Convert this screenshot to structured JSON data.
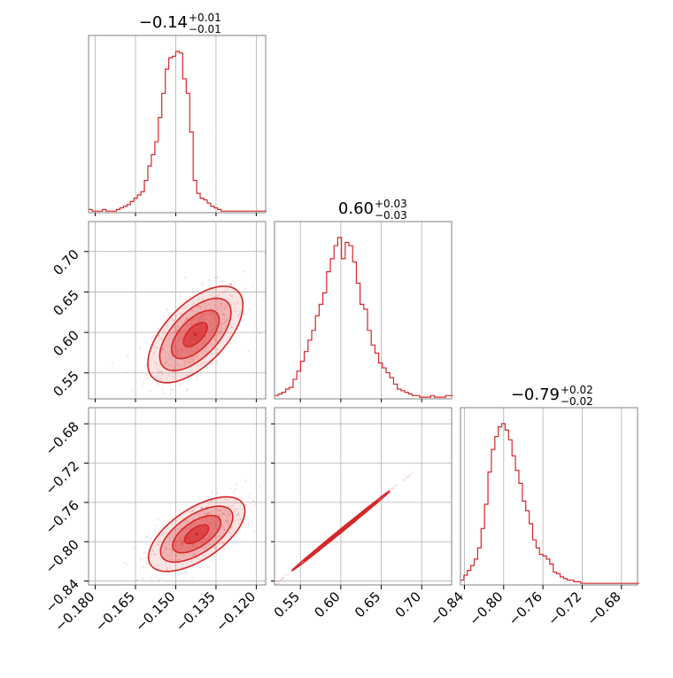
{
  "colors": {
    "series": "#d62728",
    "grid": "#b0b0b0",
    "frame": "#808080",
    "text": "#000000"
  },
  "chart_data": {
    "type": "corner",
    "grid": true,
    "n_params": 3,
    "titles": [
      {
        "param": 0,
        "median": "−0.14",
        "plus": "+0.01",
        "minus": "−0.01"
      },
      {
        "param": 1,
        "median": "0.60",
        "plus": "+0.03",
        "minus": "−0.03"
      },
      {
        "param": 2,
        "median": "−0.79",
        "plus": "+0.02",
        "minus": "−0.02"
      }
    ],
    "ranges": [
      [
        -0.1825,
        -0.1165
      ],
      [
        0.518,
        0.737
      ],
      [
        -0.844,
        -0.6636
      ]
    ],
    "ticks": [
      {
        "values": [
          -0.18,
          -0.165,
          -0.15,
          -0.135,
          -0.12
        ],
        "labels": [
          "−0.180",
          "−0.165",
          "−0.150",
          "−0.135",
          "−0.120"
        ]
      },
      {
        "values": [
          0.55,
          0.6,
          0.65,
          0.7
        ],
        "labels": [
          "0.55",
          "0.60",
          "0.65",
          "0.70"
        ]
      },
      {
        "values": [
          -0.84,
          -0.8,
          -0.76,
          -0.72,
          -0.68
        ],
        "labels": [
          "−0.84",
          "−0.80",
          "−0.76",
          "−0.72",
          "−0.68"
        ]
      }
    ],
    "row_tick_labels": {
      "row1": [
        "0.55",
        "0.60",
        "0.65",
        "0.70"
      ],
      "row2": [
        "−0.84",
        "−0.80",
        "−0.76",
        "−0.72",
        "−0.68"
      ]
    },
    "histograms": [
      {
        "param": 0,
        "bin_start": -0.1825,
        "bin_width": 0.0013,
        "counts": [
          2,
          1,
          1,
          1,
          2,
          1,
          1,
          1,
          2,
          3,
          4,
          5,
          7,
          9,
          11,
          13,
          20,
          29,
          36,
          44,
          59,
          74,
          89,
          96,
          97,
          100,
          99,
          83,
          74,
          50,
          20,
          12,
          9,
          8,
          6,
          4,
          3,
          2,
          1,
          1,
          1,
          1,
          1,
          1,
          1,
          1,
          1,
          1,
          1,
          1,
          1
        ]
      },
      {
        "param": 1,
        "bin_start": 0.518,
        "bin_width": 0.0046,
        "counts": [
          2,
          3,
          4,
          6,
          7,
          12,
          17,
          23,
          29,
          36,
          42,
          51,
          58,
          65,
          78,
          86,
          94,
          99,
          86,
          96,
          94,
          84,
          71,
          58,
          55,
          42,
          33,
          28,
          22,
          19,
          16,
          13,
          9,
          6,
          5,
          4,
          3,
          2,
          2,
          1,
          1,
          1,
          2,
          1,
          1,
          1,
          2,
          2
        ]
      },
      {
        "param": 2,
        "bin_start": -0.844,
        "bin_width": 0.0035,
        "counts": [
          3,
          6,
          9,
          12,
          16,
          23,
          35,
          50,
          70,
          84,
          92,
          98,
          100,
          96,
          90,
          80,
          71,
          63,
          52,
          46,
          38,
          28,
          23,
          19,
          18,
          16,
          13,
          8,
          7,
          5,
          4,
          3,
          3,
          2,
          2,
          1,
          1,
          1,
          1,
          1,
          1,
          1,
          1,
          1,
          1,
          1,
          1,
          1,
          1,
          1,
          1,
          1
        ]
      }
    ],
    "pairs": [
      {
        "x_param": 0,
        "y_param": 1,
        "center": [
          -0.1427,
          0.5975
        ],
        "cov": [
          [
            7.85e-05,
            0.0001595
          ],
          [
            0.0001595,
            0.00089
          ]
        ],
        "contour_levels": [
          0.5,
          1.0,
          1.5,
          2.0
        ]
      },
      {
        "x_param": 0,
        "y_param": 2,
        "center": [
          -0.1422,
          -0.7923
        ],
        "cov": [
          [
            8.08e-05,
            0.0001056
          ],
          [
            0.0001056,
            0.00036
          ]
        ],
        "contour_levels": [
          0.5,
          1.0,
          1.5,
          2.0
        ]
      },
      {
        "x_param": 1,
        "y_param": 2,
        "center": [
          0.6,
          -0.789
        ],
        "cov": [
          [
            0.0009,
            0.000603
          ],
          [
            0.000603,
            0.000405
          ]
        ],
        "contour_levels": [
          0.5,
          1.0,
          1.5,
          2.0
        ]
      }
    ]
  }
}
